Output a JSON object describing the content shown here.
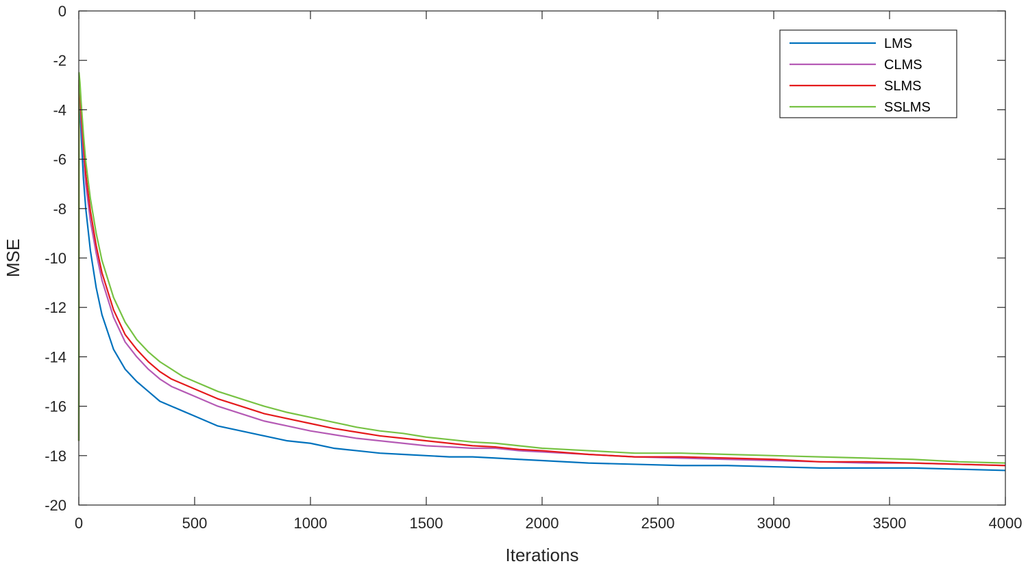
{
  "chart_data": {
    "type": "line",
    "xlabel": "Iterations",
    "ylabel": "MSE",
    "xlim": [
      0,
      4000
    ],
    "ylim": [
      -20,
      0
    ],
    "x_ticks": [
      0,
      500,
      1000,
      1500,
      2000,
      2500,
      3000,
      3500,
      4000
    ],
    "y_ticks": [
      0,
      -2,
      -4,
      -6,
      -8,
      -10,
      -12,
      -14,
      -16,
      -18,
      -20
    ],
    "grid": false,
    "legend_position": "top-right",
    "series": [
      {
        "name": "LMS",
        "color": "#0072BD",
        "x": [
          0,
          1,
          5,
          10,
          20,
          30,
          50,
          75,
          100,
          150,
          200,
          250,
          300,
          350,
          400,
          450,
          500,
          600,
          700,
          800,
          900,
          1000,
          1100,
          1200,
          1300,
          1400,
          1500,
          1600,
          1700,
          1800,
          1900,
          2000,
          2200,
          2400,
          2600,
          2800,
          3000,
          3200,
          3400,
          3600,
          3800,
          4000
        ],
        "y": [
          -17.4,
          -3.5,
          -3.9,
          -5.0,
          -6.8,
          -8.0,
          -9.7,
          -11.2,
          -12.3,
          -13.7,
          -14.5,
          -15.0,
          -15.4,
          -15.8,
          -16.0,
          -16.2,
          -16.4,
          -16.8,
          -17.0,
          -17.2,
          -17.4,
          -17.5,
          -17.7,
          -17.8,
          -17.9,
          -17.95,
          -18.0,
          -18.05,
          -18.05,
          -18.1,
          -18.15,
          -18.2,
          -18.3,
          -18.35,
          -18.4,
          -18.4,
          -18.45,
          -18.5,
          -18.5,
          -18.5,
          -18.55,
          -18.6
        ]
      },
      {
        "name": "CLMS",
        "color": "#B55AB5",
        "x": [
          0,
          1,
          5,
          10,
          20,
          30,
          50,
          75,
          100,
          150,
          200,
          250,
          300,
          350,
          400,
          450,
          500,
          600,
          700,
          800,
          900,
          1000,
          1100,
          1200,
          1300,
          1400,
          1500,
          1600,
          1700,
          1800,
          1900,
          2000,
          2200,
          2400,
          2600,
          2800,
          3000,
          3200,
          3400,
          3600,
          3800,
          4000
        ],
        "y": [
          -17.4,
          -3.0,
          -3.4,
          -4.4,
          -5.8,
          -7.0,
          -8.5,
          -9.8,
          -10.9,
          -12.4,
          -13.4,
          -14.0,
          -14.5,
          -14.9,
          -15.2,
          -15.4,
          -15.6,
          -16.0,
          -16.3,
          -16.6,
          -16.8,
          -17.0,
          -17.15,
          -17.3,
          -17.4,
          -17.5,
          -17.6,
          -17.65,
          -17.7,
          -17.7,
          -17.8,
          -17.85,
          -17.95,
          -18.05,
          -18.1,
          -18.15,
          -18.2,
          -18.25,
          -18.3,
          -18.3,
          -18.35,
          -18.4
        ]
      },
      {
        "name": "SLMS",
        "color": "#E41A1C",
        "x": [
          0,
          1,
          5,
          10,
          20,
          30,
          50,
          75,
          100,
          150,
          200,
          250,
          300,
          350,
          400,
          450,
          500,
          600,
          700,
          800,
          900,
          1000,
          1100,
          1200,
          1300,
          1400,
          1500,
          1600,
          1700,
          1800,
          1900,
          2000,
          2200,
          2400,
          2600,
          2800,
          3000,
          3200,
          3400,
          3600,
          3800,
          4000
        ],
        "y": [
          -17.4,
          -2.8,
          -3.2,
          -4.1,
          -5.4,
          -6.6,
          -8.1,
          -9.5,
          -10.6,
          -12.1,
          -13.1,
          -13.7,
          -14.2,
          -14.6,
          -14.9,
          -15.1,
          -15.3,
          -15.7,
          -16.0,
          -16.3,
          -16.5,
          -16.7,
          -16.9,
          -17.05,
          -17.2,
          -17.3,
          -17.4,
          -17.5,
          -17.6,
          -17.65,
          -17.75,
          -17.8,
          -17.95,
          -18.05,
          -18.05,
          -18.1,
          -18.15,
          -18.25,
          -18.25,
          -18.3,
          -18.35,
          -18.4
        ]
      },
      {
        "name": "SSLMS",
        "color": "#77C243",
        "x": [
          0,
          1,
          5,
          10,
          20,
          30,
          50,
          75,
          100,
          150,
          200,
          250,
          300,
          350,
          400,
          450,
          500,
          600,
          700,
          800,
          900,
          1000,
          1100,
          1200,
          1300,
          1400,
          1500,
          1600,
          1700,
          1800,
          1900,
          2000,
          2200,
          2400,
          2600,
          2800,
          3000,
          3200,
          3400,
          3600,
          3800,
          4000
        ],
        "y": [
          -17.4,
          -2.5,
          -2.9,
          -3.7,
          -5.0,
          -6.1,
          -7.6,
          -9.0,
          -10.1,
          -11.6,
          -12.6,
          -13.3,
          -13.8,
          -14.2,
          -14.5,
          -14.8,
          -15.0,
          -15.4,
          -15.7,
          -16.0,
          -16.25,
          -16.45,
          -16.65,
          -16.85,
          -17.0,
          -17.1,
          -17.25,
          -17.35,
          -17.45,
          -17.5,
          -17.6,
          -17.7,
          -17.8,
          -17.9,
          -17.9,
          -17.95,
          -18.0,
          -18.05,
          -18.1,
          -18.15,
          -18.25,
          -18.3
        ]
      }
    ]
  }
}
